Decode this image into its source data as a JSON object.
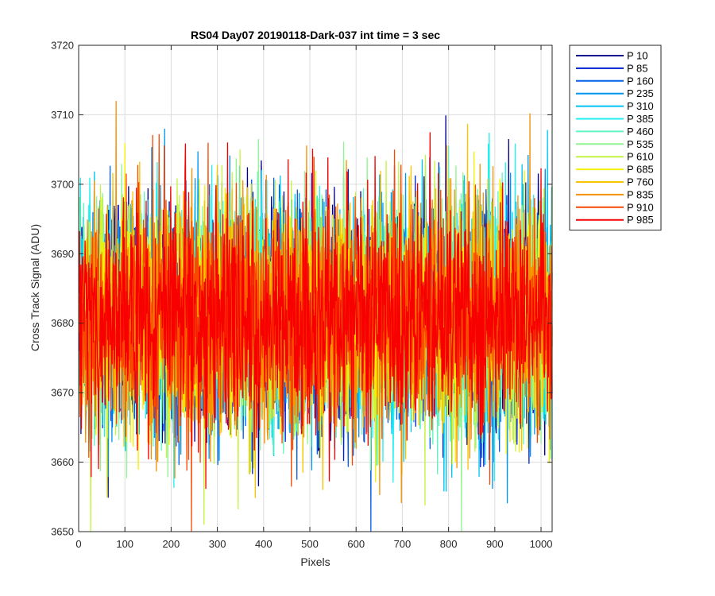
{
  "chart_data": {
    "type": "line",
    "title": "RS04 Day07 20190118-Dark-037 int time = 3 sec",
    "xlabel": "Pixels",
    "ylabel": "Cross Track Signal (ADU)",
    "xlim": [
      0,
      1024
    ],
    "ylim": [
      3650,
      3720
    ],
    "xticks": [
      0,
      100,
      200,
      300,
      400,
      500,
      600,
      700,
      800,
      900,
      1000
    ],
    "yticks": [
      3650,
      3660,
      3670,
      3680,
      3690,
      3700,
      3710,
      3720
    ],
    "grid": true,
    "legend_position": "outside-top-right",
    "noise_model": {
      "mean": 3681,
      "std": 8,
      "min": 3650,
      "max": 3712
    },
    "series": [
      {
        "name": "P 10",
        "color": "#00008f"
      },
      {
        "name": "P 85",
        "color": "#0020d0"
      },
      {
        "name": "P 160",
        "color": "#0060e8"
      },
      {
        "name": "P 235",
        "color": "#0096f0"
      },
      {
        "name": "P 310",
        "color": "#00c4f4"
      },
      {
        "name": "P 385",
        "color": "#20f0f0"
      },
      {
        "name": "P 460",
        "color": "#60f4c0"
      },
      {
        "name": "P 535",
        "color": "#90f490"
      },
      {
        "name": "P 610",
        "color": "#c4f440"
      },
      {
        "name": "P 685",
        "color": "#f4f000"
      },
      {
        "name": "P 760",
        "color": "#f8c400"
      },
      {
        "name": "P 835",
        "color": "#f89000"
      },
      {
        "name": "P 910",
        "color": "#f84800"
      },
      {
        "name": "P 985",
        "color": "#f80000"
      }
    ]
  }
}
